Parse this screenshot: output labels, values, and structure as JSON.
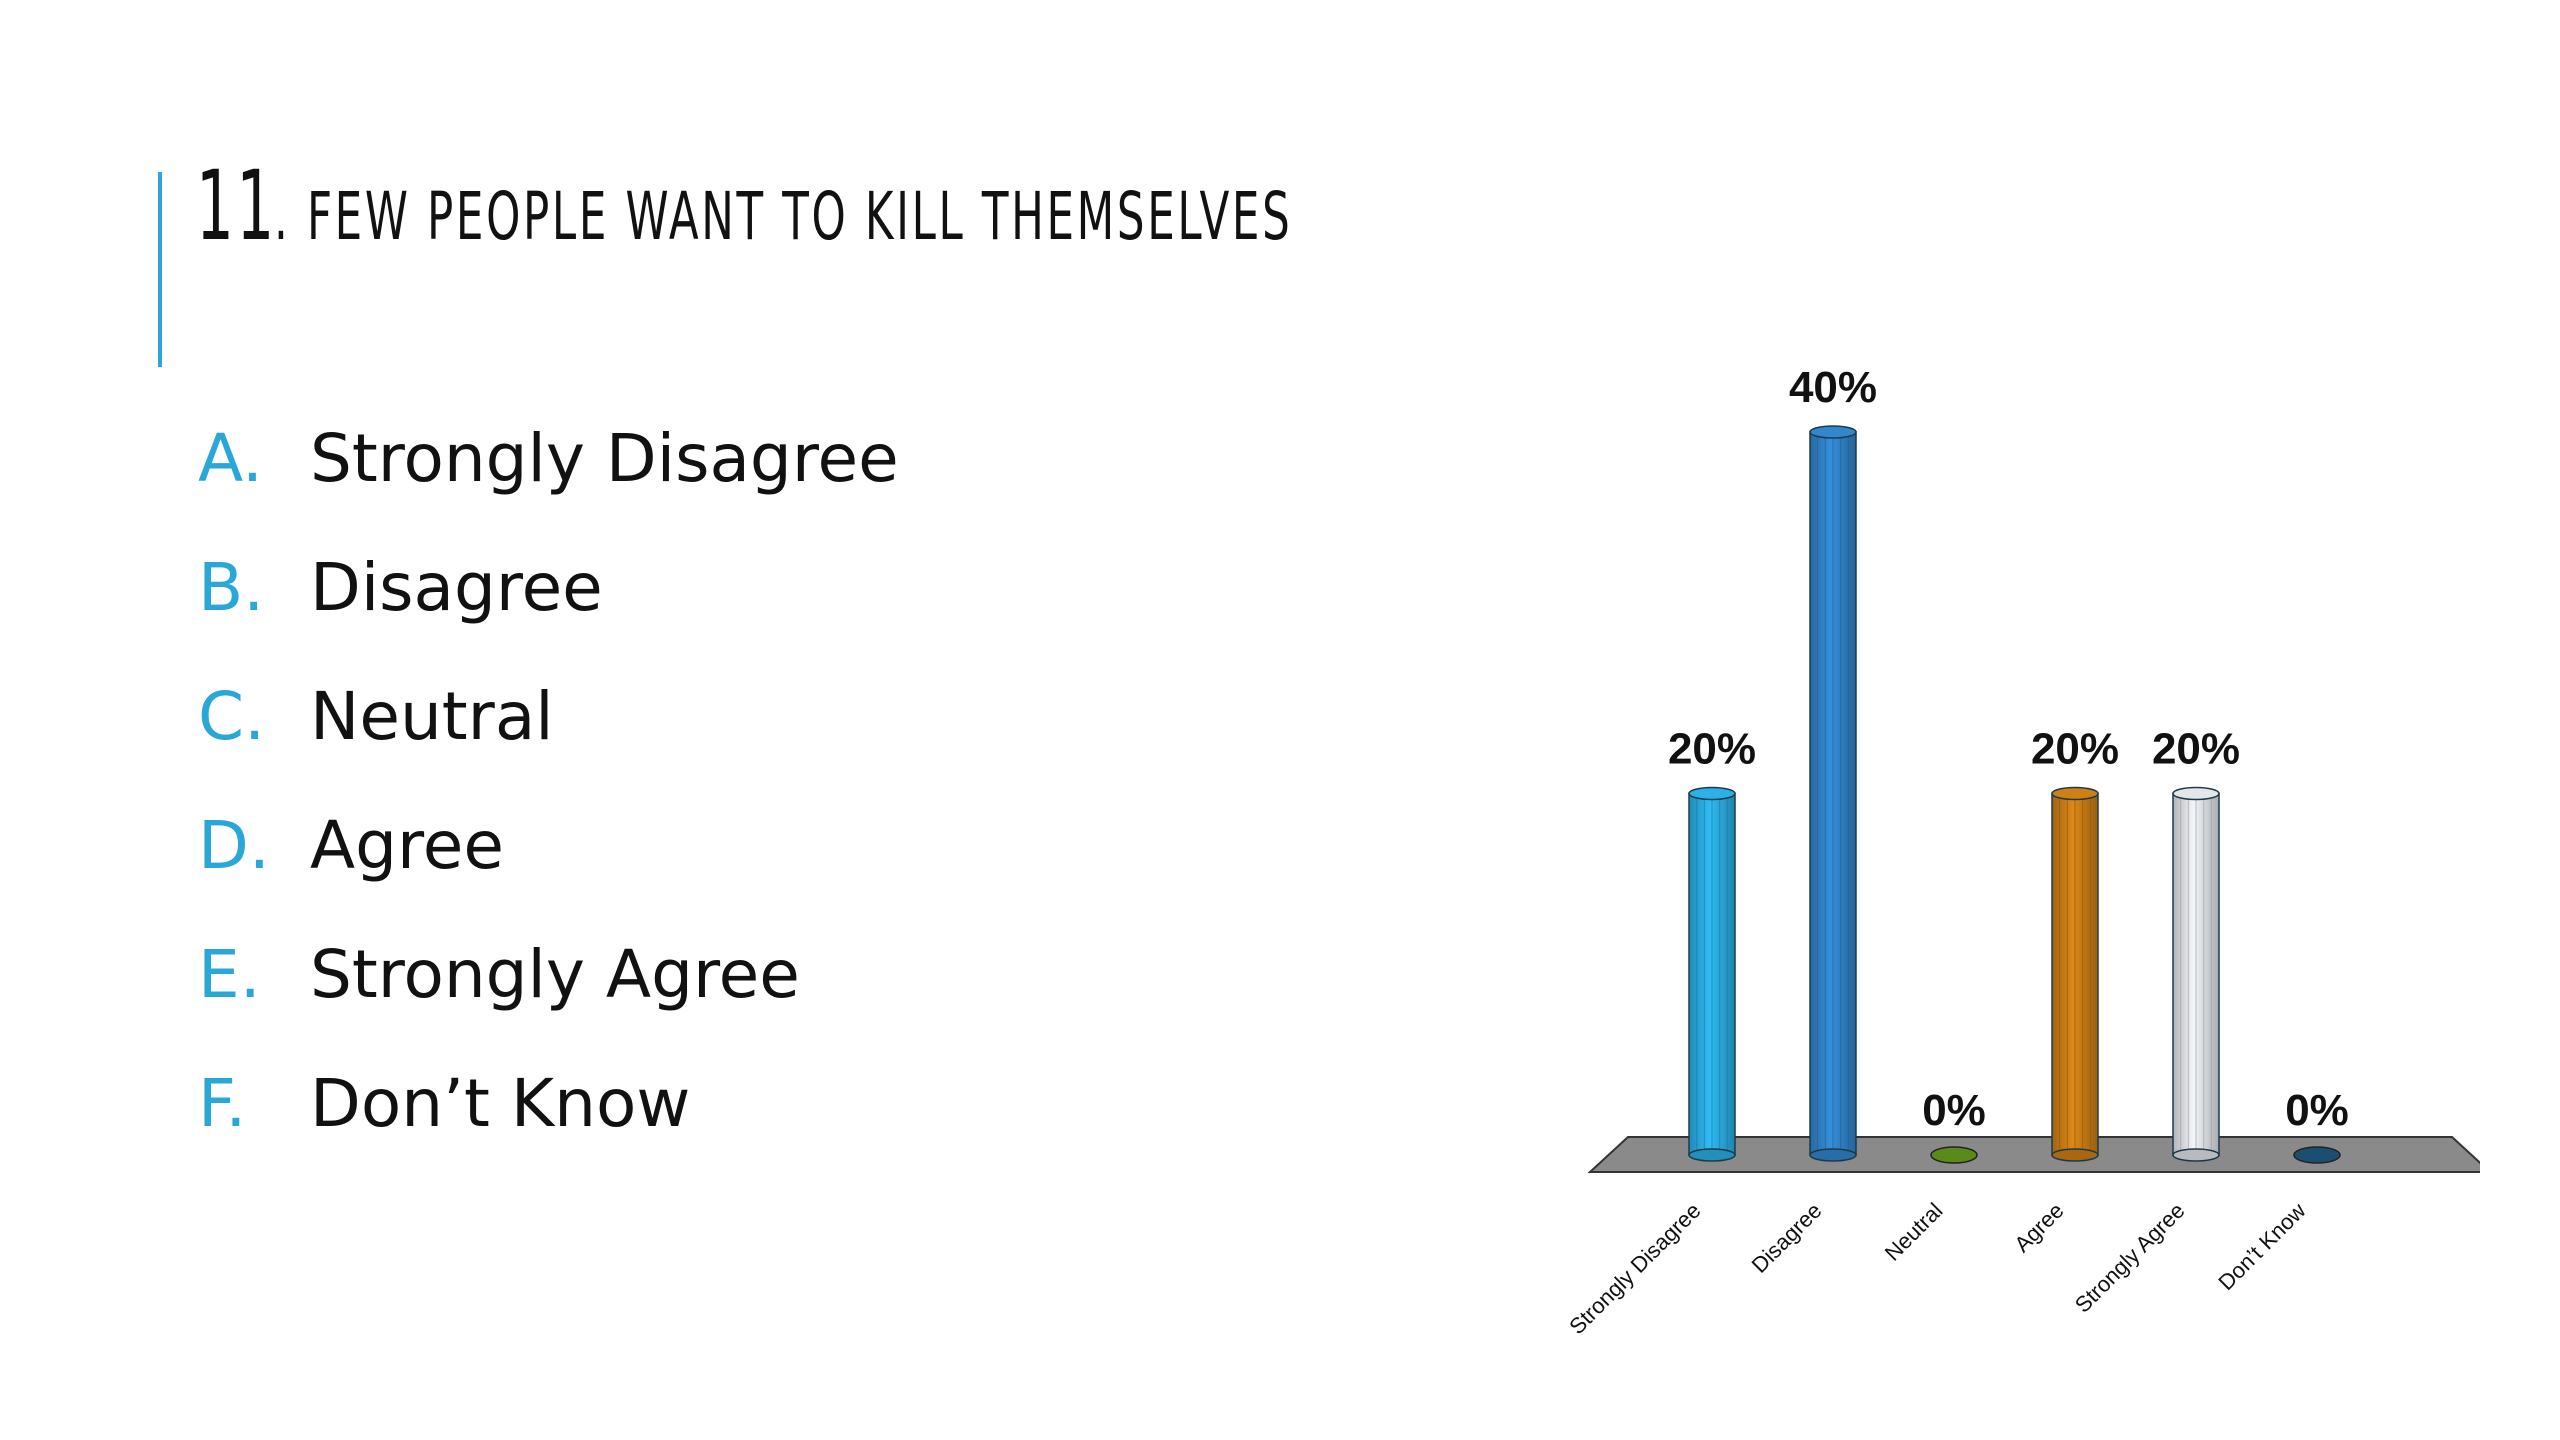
{
  "slide": {
    "title_number": "11",
    "title_text": ". FEW PEOPLE WANT TO KILL THEMSELVES"
  },
  "options": [
    {
      "letter": "A.",
      "label": "Strongly Disagree"
    },
    {
      "letter": "B.",
      "label": "Disagree"
    },
    {
      "letter": "C.",
      "label": "Neutral"
    },
    {
      "letter": "D.",
      "label": "Agree"
    },
    {
      "letter": "E.",
      "label": "Strongly Agree"
    },
    {
      "letter": "F.",
      "label": "Don’t Know"
    }
  ],
  "colors": {
    "accent": "#2aa7d9",
    "floor": "#8a8a8a"
  },
  "chart_data": {
    "type": "bar",
    "title": "",
    "xlabel": "",
    "ylabel": "",
    "ylim": [
      0,
      40
    ],
    "grid": false,
    "categories": [
      "Strongly Disagree",
      "Disagree",
      "Neutral",
      "Agree",
      "Strongly Agree",
      "Don’t Know"
    ],
    "values": [
      20,
      40,
      0,
      20,
      20,
      0
    ],
    "value_labels": [
      "20%",
      "40%",
      "0%",
      "20%",
      "20%",
      "0%"
    ],
    "bar_colors": [
      "#29a8dc",
      "#2f80c4",
      "#5a8a1a",
      "#c47a14",
      "#d9dcdf",
      "#1b4f72"
    ]
  }
}
